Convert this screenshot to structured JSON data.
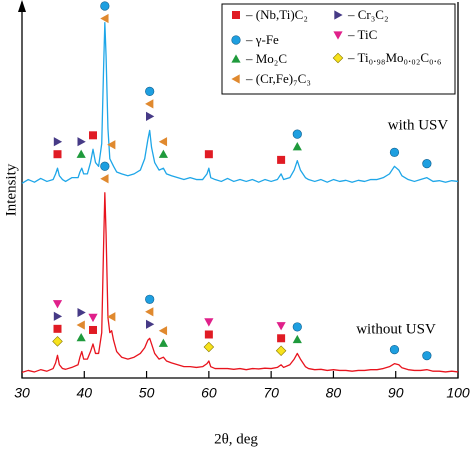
{
  "chart_data": {
    "type": "line",
    "xlabel": "2θ, deg",
    "ylabel": "Intensity",
    "xlim": [
      30,
      100
    ],
    "xticks": [
      30,
      40,
      50,
      60,
      70,
      80,
      90,
      100
    ],
    "ylim": [
      0,
      100
    ],
    "phases": [
      {
        "name": "– (Nb,Ti)C₂",
        "marker": "square",
        "color": "#e01b24"
      },
      {
        "name": "– γ-Fe",
        "marker": "circle",
        "color": "#1e9fe0"
      },
      {
        "name": "– Mo₂C",
        "marker": "triangle-up",
        "color": "#1f9a3c"
      },
      {
        "name": "– (Cr,Fe)₇C₃",
        "marker": "triangle-left",
        "color": "#e0892e"
      },
      {
        "name": "– Cr₃C₂",
        "marker": "triangle-right",
        "color": "#463a86"
      },
      {
        "name": "– TiC",
        "marker": "triangle-down",
        "color": "#e0208a"
      },
      {
        "name": "– Ti₀.₉₈Mo₀.₀₂C₀.₆",
        "marker": "diamond",
        "color": "#f7e21c"
      }
    ],
    "x": [
      30,
      31,
      32,
      33,
      34,
      35,
      35.4,
      35.7,
      36.0,
      36.5,
      37,
      38,
      39,
      39.3,
      39.6,
      39.9,
      40.5,
      41.0,
      41.4,
      41.8,
      42.3,
      42.8,
      43.1,
      43.3,
      43.5,
      43.8,
      44.1,
      44.4,
      44.7,
      45.2,
      46,
      47,
      48,
      49,
      49.7,
      50.2,
      50.5,
      50.8,
      51.3,
      52,
      52.7,
      53.2,
      54,
      55,
      56,
      57,
      58,
      59,
      59.7,
      60,
      60.3,
      61,
      62,
      63,
      64,
      65,
      66,
      67,
      68,
      69,
      70,
      71,
      71.6,
      72,
      73,
      73.7,
      74.2,
      74.7,
      75.5,
      76,
      77,
      78,
      79,
      80,
      81,
      82,
      83,
      84,
      85,
      86,
      87,
      88,
      89,
      89.8,
      90.5,
      91,
      92,
      93,
      94,
      95,
      96,
      97,
      98,
      99,
      100
    ],
    "series": [
      {
        "name": "with USV",
        "color": "#1ea6e8",
        "values": [
          51.5,
          52.5,
          51.8,
          52.8,
          52,
          52.5,
          54,
          55.5,
          53.5,
          52.5,
          52,
          53,
          53,
          54.5,
          55.5,
          54,
          54,
          57,
          60.5,
          57,
          56,
          62,
          82,
          94,
          85,
          66,
          58,
          57,
          56,
          54.5,
          54,
          53.5,
          54,
          55,
          58,
          63,
          65.5,
          61,
          57,
          55,
          55.5,
          54,
          53.5,
          53,
          52.5,
          53,
          52.5,
          52.5,
          54,
          55.5,
          53,
          52.5,
          52,
          52.8,
          52,
          52.5,
          52,
          52.5,
          51.8,
          52.5,
          52,
          52.5,
          54,
          52.5,
          53,
          55,
          57.5,
          55,
          53,
          52.5,
          52,
          52.5,
          51.8,
          52.5,
          52,
          52.3,
          51.8,
          52.3,
          52,
          52.5,
          52.5,
          53,
          54,
          56,
          55,
          53.5,
          52.5,
          52,
          52.5,
          53,
          52,
          52.2,
          51.8,
          52.2,
          52
        ],
        "markers": [
          {
            "x": 35.7,
            "phases": [
              0,
              4
            ]
          },
          {
            "x": 39.5,
            "phases": [
              2,
              4
            ]
          },
          {
            "x": 41.4,
            "phases": [
              0
            ]
          },
          {
            "x": 43.3,
            "phases": [
              3,
              1
            ]
          },
          {
            "x": 44.4,
            "phases": [
              3
            ]
          },
          {
            "x": 50.5,
            "phases": [
              4,
              3,
              1
            ]
          },
          {
            "x": 52.7,
            "phases": [
              2,
              3
            ]
          },
          {
            "x": 60,
            "phases": [
              0
            ]
          },
          {
            "x": 71.6,
            "phases": [
              0
            ]
          },
          {
            "x": 74.2,
            "phases": [
              2,
              1
            ]
          },
          {
            "x": 89.8,
            "phases": [
              1
            ]
          },
          {
            "x": 95,
            "phases": [
              1
            ]
          }
        ]
      },
      {
        "name": "without USV",
        "color": "#e8141e",
        "values": [
          1.5,
          2,
          1.6,
          2.2,
          1.8,
          2.5,
          4,
          6,
          3.5,
          2.5,
          2.3,
          2.8,
          3.5,
          5.5,
          7,
          5,
          5,
          7,
          9,
          6.5,
          6.5,
          12,
          35,
          49,
          38,
          16,
          12,
          12.5,
          10,
          7,
          5.5,
          5,
          5.5,
          6.5,
          8,
          10,
          10.5,
          9,
          6.5,
          5,
          5.5,
          4.5,
          4,
          3.5,
          3,
          3,
          2.8,
          3,
          3.8,
          4.5,
          3,
          2.5,
          2.5,
          2.5,
          2.3,
          2.5,
          2.2,
          2.5,
          2.4,
          2.6,
          2.5,
          2.8,
          3.5,
          2.8,
          3.5,
          5,
          6.5,
          5,
          3,
          2.5,
          2.2,
          2.3,
          2,
          2.2,
          2,
          2,
          1.8,
          2,
          2,
          2.2,
          2.2,
          2.5,
          3,
          3.8,
          3.5,
          2.7,
          2.2,
          2,
          2,
          2.2,
          1.8,
          1.8,
          1.6,
          1.8,
          1.6
        ],
        "markers": [
          {
            "x": 35.7,
            "phases": [
              6,
              0,
              4,
              5
            ]
          },
          {
            "x": 39.5,
            "phases": [
              2,
              3,
              4
            ]
          },
          {
            "x": 41.4,
            "phases": [
              0,
              5
            ]
          },
          {
            "x": 43.3,
            "phases": [
              3,
              1
            ]
          },
          {
            "x": 44.4,
            "phases": [
              3
            ]
          },
          {
            "x": 50.5,
            "phases": [
              4,
              3,
              1
            ]
          },
          {
            "x": 52.7,
            "phases": [
              2,
              3
            ]
          },
          {
            "x": 60,
            "phases": [
              6,
              0,
              5
            ]
          },
          {
            "x": 71.6,
            "phases": [
              6,
              0,
              5
            ]
          },
          {
            "x": 74.2,
            "phases": [
              2,
              1
            ]
          },
          {
            "x": 89.8,
            "phases": [
              1
            ]
          },
          {
            "x": 95,
            "phases": [
              1
            ]
          }
        ]
      }
    ]
  }
}
